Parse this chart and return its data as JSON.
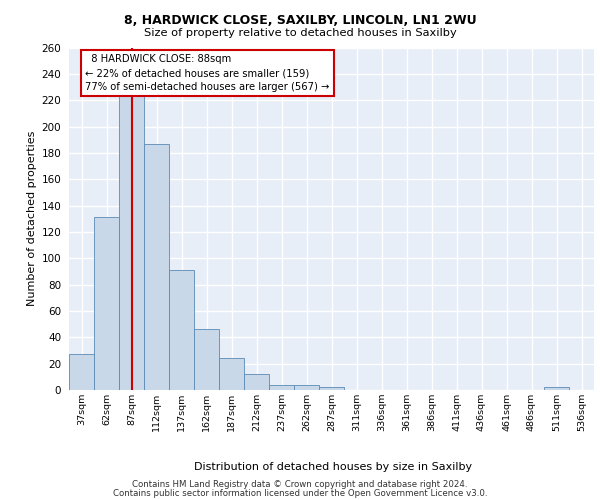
{
  "title1": "8, HARDWICK CLOSE, SAXILBY, LINCOLN, LN1 2WU",
  "title2": "Size of property relative to detached houses in Saxilby",
  "xlabel": "Distribution of detached houses by size in Saxilby",
  "ylabel": "Number of detached properties",
  "categories": [
    "37sqm",
    "62sqm",
    "87sqm",
    "112sqm",
    "137sqm",
    "162sqm",
    "187sqm",
    "212sqm",
    "237sqm",
    "262sqm",
    "287sqm",
    "311sqm",
    "336sqm",
    "361sqm",
    "386sqm",
    "411sqm",
    "436sqm",
    "461sqm",
    "486sqm",
    "511sqm",
    "536sqm"
  ],
  "values": [
    27,
    131,
    228,
    187,
    91,
    46,
    24,
    12,
    4,
    4,
    2,
    0,
    0,
    0,
    0,
    0,
    0,
    0,
    0,
    2,
    0
  ],
  "bar_color": "#c8d8e8",
  "bar_edge_color": "#5a8ab5",
  "bar_width": 1.0,
  "marker_idx": 2,
  "marker_label": "8 HARDWICK CLOSE: 88sqm",
  "pct_smaller": "22% of detached houses are smaller (159)",
  "pct_larger": "77% of semi-detached houses are larger (567)",
  "marker_color": "#cc0000",
  "annotation_box_color": "#ffffff",
  "annotation_box_edge": "#cc0000",
  "ylim": [
    0,
    260
  ],
  "yticks": [
    0,
    20,
    40,
    60,
    80,
    100,
    120,
    140,
    160,
    180,
    200,
    220,
    240,
    260
  ],
  "bg_color": "#e8eef8",
  "grid_color": "#ffffff",
  "footer1": "Contains HM Land Registry data © Crown copyright and database right 2024.",
  "footer2": "Contains public sector information licensed under the Open Government Licence v3.0."
}
